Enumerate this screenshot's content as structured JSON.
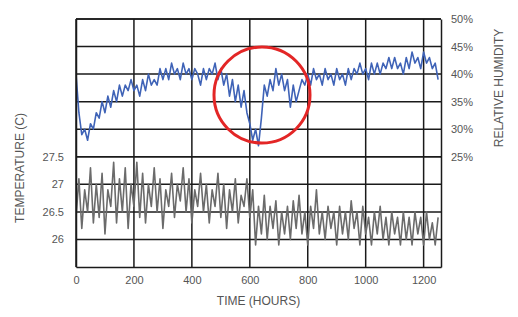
{
  "chart_data": {
    "type": "line",
    "x_label": "TIME (HOURS)",
    "y_label": "TEMPERATURE (C)",
    "y2_label": "RELATIVE HUMIDITY",
    "grid": true,
    "xlim": [
      0,
      1260
    ],
    "xticks": [
      0,
      200,
      400,
      600,
      800,
      1000,
      1200
    ],
    "ylim": [
      25.5,
      30
    ],
    "yticks": [
      26,
      26.5,
      27,
      27.5
    ],
    "y2lim": [
      5,
      50
    ],
    "y2ticks": [
      {
        "value": 25,
        "label": "25%"
      },
      {
        "value": 30,
        "label": "30%"
      },
      {
        "value": 35,
        "label": "35%"
      },
      {
        "value": 40,
        "label": "40%"
      },
      {
        "value": 45,
        "label": "45%"
      },
      {
        "value": 50,
        "label": "50%"
      }
    ],
    "x": [
      0,
      10,
      20,
      30,
      40,
      50,
      60,
      70,
      80,
      90,
      100,
      110,
      120,
      130,
      140,
      150,
      160,
      170,
      180,
      190,
      200,
      210,
      220,
      230,
      240,
      250,
      260,
      270,
      280,
      290,
      300,
      310,
      320,
      330,
      340,
      350,
      360,
      370,
      380,
      390,
      400,
      410,
      420,
      430,
      440,
      450,
      460,
      470,
      480,
      490,
      500,
      510,
      520,
      530,
      540,
      550,
      560,
      570,
      580,
      590,
      600,
      610,
      620,
      630,
      640,
      650,
      660,
      670,
      680,
      690,
      700,
      710,
      720,
      730,
      740,
      750,
      760,
      770,
      780,
      790,
      800,
      810,
      820,
      830,
      840,
      850,
      860,
      870,
      880,
      890,
      900,
      910,
      920,
      930,
      940,
      950,
      960,
      970,
      980,
      990,
      1000,
      1010,
      1020,
      1030,
      1040,
      1050,
      1060,
      1070,
      1080,
      1090,
      1100,
      1110,
      1120,
      1130,
      1140,
      1150,
      1160,
      1170,
      1180,
      1190,
      1200,
      1210,
      1220,
      1230,
      1240,
      1250
    ],
    "series": [
      {
        "color": "#3f63b7",
        "axis": "y2",
        "values": [
          40,
          33,
          29,
          30,
          28,
          31,
          30,
          33,
          32,
          35,
          33,
          36,
          34,
          37,
          35,
          38,
          36,
          38,
          37,
          39,
          37,
          38,
          36,
          39,
          37,
          40,
          38,
          39,
          38,
          41,
          39,
          41,
          39,
          42,
          40,
          41,
          39,
          42,
          40,
          41,
          39,
          41,
          40,
          38,
          41,
          39,
          41,
          40,
          42,
          39,
          41,
          38,
          40,
          36,
          39,
          35,
          38,
          34,
          37,
          33,
          31,
          28,
          30,
          27,
          32,
          38,
          36,
          39,
          37,
          41,
          38,
          40,
          37,
          39,
          34,
          38,
          35,
          37,
          39,
          38,
          40,
          38,
          41,
          39,
          40,
          38,
          41,
          39,
          40,
          38,
          41,
          39,
          40,
          38,
          41,
          39,
          41,
          40,
          42,
          40,
          41,
          39,
          42,
          40,
          42,
          40,
          42,
          41,
          43,
          41,
          43,
          41,
          42,
          40,
          43,
          41,
          44,
          42,
          43,
          41,
          44,
          42,
          43,
          41,
          42,
          39
        ]
      },
      {
        "color": "#6b6b6b",
        "values": [
          26.4,
          27.1,
          26.2,
          26.9,
          26.5,
          27.3,
          26.3,
          27.0,
          26.4,
          27.2,
          26.1,
          26.9,
          26.6,
          27.4,
          26.3,
          27.1,
          26.5,
          27.3,
          26.2,
          27.0,
          26.6,
          27.4,
          26.4,
          27.2,
          26.3,
          27.0,
          26.6,
          27.3,
          26.5,
          27.1,
          26.2,
          26.9,
          26.6,
          27.2,
          26.4,
          27.0,
          26.7,
          27.3,
          26.5,
          27.1,
          26.3,
          26.9,
          26.6,
          27.2,
          26.5,
          27.0,
          26.3,
          26.9,
          26.6,
          27.2,
          26.4,
          27.0,
          26.2,
          26.9,
          26.5,
          27.1,
          26.3,
          26.8,
          26.6,
          27.1,
          26.4,
          26.9,
          25.9,
          26.6,
          26.1,
          26.8,
          26.0,
          26.6,
          26.2,
          26.7,
          25.9,
          26.5,
          26.1,
          26.6,
          26.0,
          26.7,
          26.2,
          26.8,
          26.1,
          26.5,
          25.9,
          26.6,
          26.2,
          26.9,
          26.1,
          26.5,
          26.0,
          26.6,
          26.2,
          26.5,
          25.9,
          26.6,
          26.1,
          26.5,
          26.0,
          26.7,
          26.2,
          26.5,
          25.9,
          26.6,
          26.1,
          26.4,
          25.9,
          26.5,
          26.1,
          26.6,
          26.0,
          26.4,
          25.9,
          26.5,
          26.1,
          26.4,
          25.9,
          26.5,
          26.0,
          26.4,
          25.9,
          26.5,
          26.1,
          26.4,
          25.9,
          26.5,
          26.0,
          26.3,
          25.9,
          26.4
        ]
      }
    ]
  }
}
